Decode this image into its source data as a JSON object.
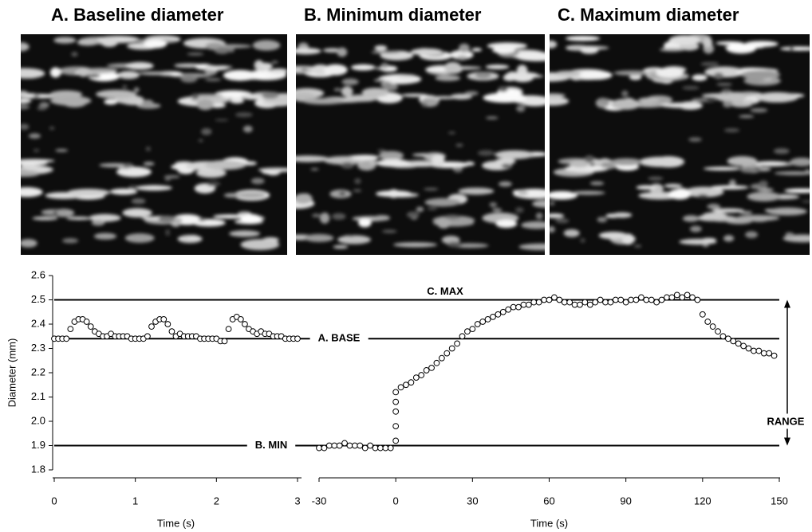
{
  "images": [
    {
      "title": "A.  Baseline diameter"
    },
    {
      "title": "B. Minimum diameter"
    },
    {
      "title": "C. Maximum diameter"
    }
  ],
  "chart_data": {
    "type": "scatter",
    "ylabel": "Diameter (mm)",
    "ylim": [
      1.8,
      2.6
    ],
    "yticks": [
      1.8,
      1.9,
      {
        "value": 2.0,
        "label": "2.0"
      },
      2.1,
      2.2,
      2.3,
      2.4,
      2.5,
      2.6
    ],
    "reference_lines": [
      {
        "value": 2.5,
        "label": "C. MAX"
      },
      {
        "value": 2.34,
        "label": "A. BASE"
      },
      {
        "value": 1.9,
        "label": "B. MIN"
      }
    ],
    "range_label": "RANGE",
    "marker_color": "#000000",
    "panels": [
      {
        "xlabel": "Time (s)",
        "xlim": [
          0,
          3
        ],
        "xticks": [
          0,
          1,
          2,
          3
        ],
        "x": [
          0,
          0.05,
          0.1,
          0.15,
          0.2,
          0.25,
          0.3,
          0.35,
          0.4,
          0.45,
          0.5,
          0.55,
          0.6,
          0.65,
          0.7,
          0.75,
          0.8,
          0.85,
          0.9,
          0.95,
          1.0,
          1.05,
          1.1,
          1.15,
          1.2,
          1.25,
          1.3,
          1.35,
          1.4,
          1.45,
          1.5,
          1.55,
          1.6,
          1.65,
          1.7,
          1.75,
          1.8,
          1.85,
          1.9,
          1.95,
          2.0,
          2.05,
          2.1,
          2.15,
          2.2,
          2.25,
          2.3,
          2.35,
          2.4,
          2.45,
          2.5,
          2.55,
          2.6,
          2.65,
          2.7,
          2.75,
          2.8,
          2.85,
          2.9,
          2.95,
          3.0
        ],
        "values": [
          2.34,
          2.34,
          2.34,
          2.34,
          2.38,
          2.41,
          2.42,
          2.42,
          2.41,
          2.39,
          2.37,
          2.36,
          2.35,
          2.35,
          2.36,
          2.35,
          2.35,
          2.35,
          2.35,
          2.34,
          2.34,
          2.34,
          2.34,
          2.35,
          2.39,
          2.41,
          2.42,
          2.42,
          2.4,
          2.37,
          2.35,
          2.36,
          2.35,
          2.35,
          2.35,
          2.35,
          2.34,
          2.34,
          2.34,
          2.34,
          2.34,
          2.33,
          2.33,
          2.38,
          2.42,
          2.43,
          2.42,
          2.4,
          2.38,
          2.37,
          2.36,
          2.37,
          2.36,
          2.36,
          2.35,
          2.35,
          2.35,
          2.34,
          2.34,
          2.34,
          2.34
        ]
      },
      {
        "xlabel": "Time (s)",
        "xlim": [
          -30,
          150
        ],
        "xticks": [
          -30,
          0,
          30,
          60,
          90,
          120,
          150
        ],
        "x": [
          -30,
          -28,
          -26,
          -24,
          -22,
          -20,
          -18,
          -16,
          -14,
          -12,
          -10,
          -8,
          -6,
          -4,
          -2,
          0,
          0,
          0,
          0,
          0,
          2,
          4,
          6,
          8,
          10,
          12,
          14,
          16,
          18,
          20,
          22,
          24,
          26,
          28,
          30,
          32,
          34,
          36,
          38,
          40,
          42,
          44,
          46,
          48,
          50,
          52,
          54,
          56,
          58,
          60,
          62,
          64,
          66,
          68,
          70,
          72,
          74,
          76,
          78,
          80,
          82,
          84,
          86,
          88,
          90,
          92,
          94,
          96,
          98,
          100,
          102,
          104,
          106,
          108,
          110,
          112,
          114,
          116,
          118,
          120,
          122,
          124,
          126,
          128,
          130,
          132,
          134,
          136,
          138,
          140,
          142,
          144,
          146,
          148
        ],
        "values": [
          1.89,
          1.89,
          1.9,
          1.9,
          1.9,
          1.91,
          1.9,
          1.9,
          1.9,
          1.89,
          1.9,
          1.89,
          1.89,
          1.89,
          1.89,
          1.92,
          1.98,
          2.04,
          2.08,
          2.12,
          2.14,
          2.15,
          2.16,
          2.18,
          2.19,
          2.21,
          2.22,
          2.24,
          2.26,
          2.28,
          2.3,
          2.32,
          2.35,
          2.37,
          2.38,
          2.4,
          2.41,
          2.42,
          2.43,
          2.44,
          2.45,
          2.46,
          2.47,
          2.47,
          2.48,
          2.48,
          2.49,
          2.49,
          2.5,
          2.5,
          2.51,
          2.5,
          2.49,
          2.49,
          2.48,
          2.48,
          2.49,
          2.48,
          2.49,
          2.5,
          2.49,
          2.49,
          2.5,
          2.5,
          2.49,
          2.5,
          2.5,
          2.51,
          2.5,
          2.5,
          2.49,
          2.5,
          2.51,
          2.51,
          2.52,
          2.51,
          2.52,
          2.51,
          2.5,
          2.44,
          2.41,
          2.39,
          2.37,
          2.35,
          2.34,
          2.33,
          2.32,
          2.31,
          2.3,
          2.29,
          2.29,
          2.28,
          2.28,
          2.27
        ]
      }
    ]
  }
}
